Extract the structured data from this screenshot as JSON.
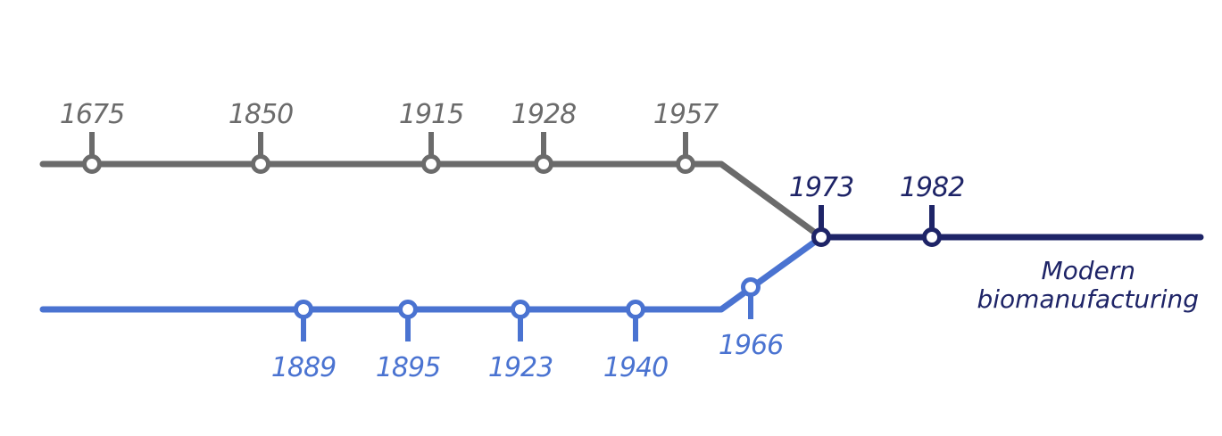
{
  "colors": {
    "gray": "#6b6b6b",
    "blue": "#4a73d1",
    "navy": "#1e2467"
  },
  "gray_line": {
    "years": [
      "1675",
      "1850",
      "1915",
      "1928",
      "1957"
    ]
  },
  "blue_line": {
    "years": [
      "1889",
      "1895",
      "1923",
      "1940",
      "1966"
    ]
  },
  "merged_line": {
    "years": [
      "1973",
      "1982"
    ],
    "label_line1": "Modern",
    "label_line2": "biomanufacturing"
  }
}
